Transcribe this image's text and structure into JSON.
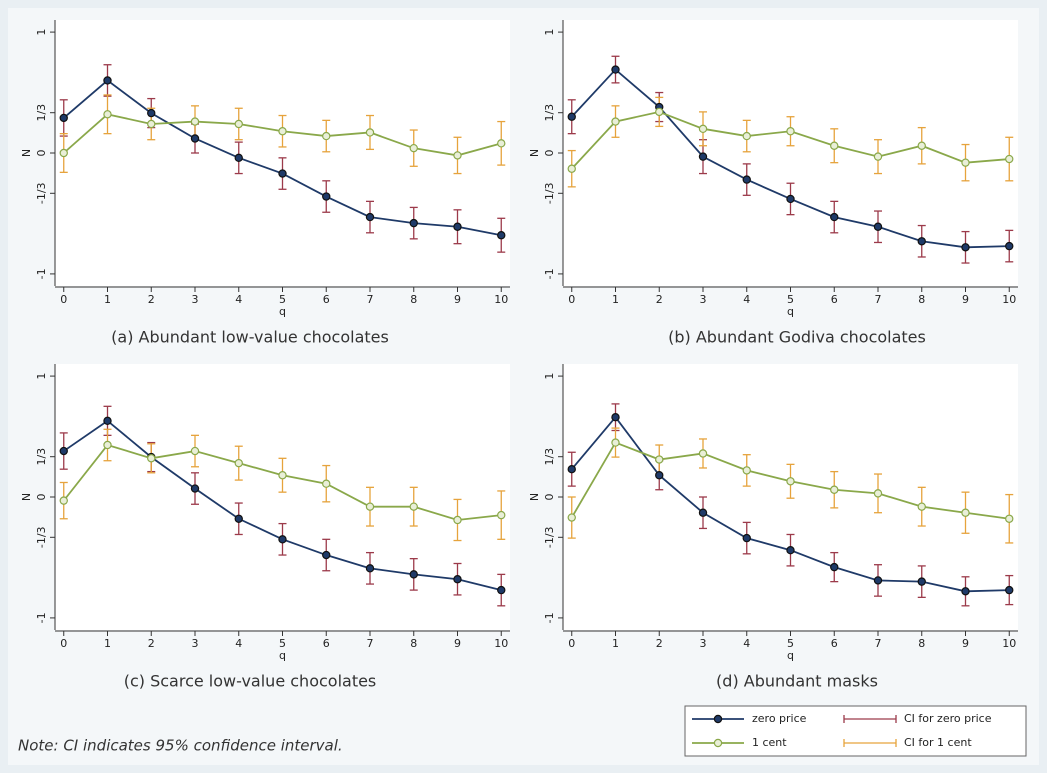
{
  "chart_data": [
    {
      "type": "line",
      "caption": "(a) Abundant low-value chocolates",
      "xlabel": "q",
      "ylabel": "N",
      "x": [
        0,
        1,
        2,
        3,
        4,
        5,
        6,
        7,
        8,
        9,
        10
      ],
      "xlim": [
        -0.2,
        10.2
      ],
      "xticks": [
        0,
        1,
        2,
        3,
        4,
        5,
        6,
        7,
        8,
        9,
        10
      ],
      "ylim": [
        -1.1,
        1.1
      ],
      "yticks": [
        -1,
        {
          "value": -0.3333,
          "label": "-1/3"
        },
        0,
        {
          "value": 0.3333,
          "label": "1/3"
        },
        1
      ],
      "series": [
        {
          "color": "#1f3a68",
          "marker": "filled",
          "errorbar_color": "#9c3a4a",
          "values": [
            0.29,
            0.6,
            0.33,
            0.12,
            -0.04,
            -0.17,
            -0.36,
            -0.53,
            -0.58,
            -0.61,
            -0.68
          ],
          "errors": [
            0.15,
            0.13,
            0.12,
            0.12,
            0.13,
            0.13,
            0.13,
            0.13,
            0.13,
            0.14,
            0.14
          ]
        },
        {
          "color": "#8aa84a",
          "marker": "hollow",
          "errorbar_color": "#e6a33c",
          "values": [
            0.0,
            0.32,
            0.24,
            0.26,
            0.24,
            0.18,
            0.14,
            0.17,
            0.04,
            -0.02,
            0.08
          ],
          "errors": [
            0.16,
            0.16,
            0.13,
            0.13,
            0.13,
            0.13,
            0.13,
            0.14,
            0.15,
            0.15,
            0.18
          ]
        }
      ]
    },
    {
      "type": "line",
      "caption": "(b) Abundant Godiva chocolates",
      "xlabel": "q",
      "ylabel": "N",
      "x": [
        0,
        1,
        2,
        3,
        4,
        5,
        6,
        7,
        8,
        9,
        10
      ],
      "xlim": [
        -0.2,
        10.2
      ],
      "xticks": [
        0,
        1,
        2,
        3,
        4,
        5,
        6,
        7,
        8,
        9,
        10
      ],
      "ylim": [
        -1.1,
        1.1
      ],
      "yticks": [
        -1,
        {
          "value": -0.3333,
          "label": "-1/3"
        },
        0,
        {
          "value": 0.3333,
          "label": "1/3"
        },
        1
      ],
      "series": [
        {
          "color": "#1f3a68",
          "marker": "filled",
          "errorbar_color": "#9c3a4a",
          "values": [
            0.3,
            0.69,
            0.38,
            -0.03,
            -0.22,
            -0.38,
            -0.53,
            -0.61,
            -0.73,
            -0.78,
            -0.77
          ],
          "errors": [
            0.14,
            0.11,
            0.12,
            0.14,
            0.13,
            0.13,
            0.13,
            0.13,
            0.13,
            0.13,
            0.13
          ]
        },
        {
          "color": "#8aa84a",
          "marker": "hollow",
          "errorbar_color": "#e6a33c",
          "values": [
            -0.13,
            0.26,
            0.34,
            0.2,
            0.14,
            0.18,
            0.06,
            -0.03,
            0.06,
            -0.08,
            -0.05
          ],
          "errors": [
            0.15,
            0.13,
            0.12,
            0.14,
            0.13,
            0.12,
            0.14,
            0.14,
            0.15,
            0.15,
            0.18
          ]
        }
      ]
    },
    {
      "type": "line",
      "caption": "(c) Scarce low-value chocolates",
      "xlabel": "q",
      "ylabel": "N",
      "x": [
        0,
        1,
        2,
        3,
        4,
        5,
        6,
        7,
        8,
        9,
        10
      ],
      "xlim": [
        -0.2,
        10.2
      ],
      "xticks": [
        0,
        1,
        2,
        3,
        4,
        5,
        6,
        7,
        8,
        9,
        10
      ],
      "ylim": [
        -1.1,
        1.1
      ],
      "yticks": [
        -1,
        {
          "value": -0.3333,
          "label": "-1/3"
        },
        0,
        {
          "value": 0.3333,
          "label": "1/3"
        },
        1
      ],
      "series": [
        {
          "color": "#1f3a68",
          "marker": "filled",
          "errorbar_color": "#9c3a4a",
          "values": [
            0.38,
            0.63,
            0.33,
            0.07,
            -0.18,
            -0.35,
            -0.48,
            -0.59,
            -0.64,
            -0.68,
            -0.77
          ],
          "errors": [
            0.15,
            0.12,
            0.12,
            0.13,
            0.13,
            0.13,
            0.13,
            0.13,
            0.13,
            0.13,
            0.13
          ]
        },
        {
          "color": "#8aa84a",
          "marker": "hollow",
          "errorbar_color": "#e6a33c",
          "values": [
            -0.03,
            0.43,
            0.32,
            0.38,
            0.28,
            0.18,
            0.11,
            -0.08,
            -0.08,
            -0.19,
            -0.15
          ],
          "errors": [
            0.15,
            0.13,
            0.12,
            0.13,
            0.14,
            0.14,
            0.15,
            0.16,
            0.16,
            0.17,
            0.2
          ]
        }
      ]
    },
    {
      "type": "line",
      "caption": "(d) Abundant masks",
      "xlabel": "q",
      "ylabel": "N",
      "x": [
        0,
        1,
        2,
        3,
        4,
        5,
        6,
        7,
        8,
        9,
        10
      ],
      "xlim": [
        -0.2,
        10.2
      ],
      "xticks": [
        0,
        1,
        2,
        3,
        4,
        5,
        6,
        7,
        8,
        9,
        10
      ],
      "ylim": [
        -1.1,
        1.1
      ],
      "yticks": [
        -1,
        {
          "value": -0.3333,
          "label": "-1/3"
        },
        0,
        {
          "value": 0.3333,
          "label": "1/3"
        },
        1
      ],
      "series": [
        {
          "color": "#1f3a68",
          "marker": "filled",
          "errorbar_color": "#9c3a4a",
          "values": [
            0.23,
            0.66,
            0.18,
            -0.13,
            -0.34,
            -0.44,
            -0.58,
            -0.69,
            -0.7,
            -0.78,
            -0.77
          ],
          "errors": [
            0.14,
            0.11,
            0.12,
            0.13,
            0.13,
            0.13,
            0.12,
            0.13,
            0.13,
            0.12,
            0.12
          ]
        },
        {
          "color": "#8aa84a",
          "marker": "hollow",
          "errorbar_color": "#e6a33c",
          "values": [
            -0.17,
            0.45,
            0.31,
            0.36,
            0.22,
            0.13,
            0.06,
            0.03,
            -0.08,
            -0.13,
            -0.18
          ],
          "errors": [
            0.17,
            0.12,
            0.12,
            0.12,
            0.13,
            0.14,
            0.15,
            0.16,
            0.16,
            0.17,
            0.2
          ]
        }
      ]
    }
  ],
  "legend": [
    {
      "name": "zero price",
      "kind": "line",
      "color": "#1f3a68",
      "marker": "filled"
    },
    {
      "name": "CI for zero price",
      "kind": "ci",
      "color": "#9c3a4a"
    },
    {
      "name": "1 cent",
      "kind": "line",
      "color": "#8aa84a",
      "marker": "hollow"
    },
    {
      "name": "CI for 1 cent",
      "kind": "ci",
      "color": "#e6a33c"
    }
  ],
  "note": "Note: CI indicates 95% confidence interval."
}
